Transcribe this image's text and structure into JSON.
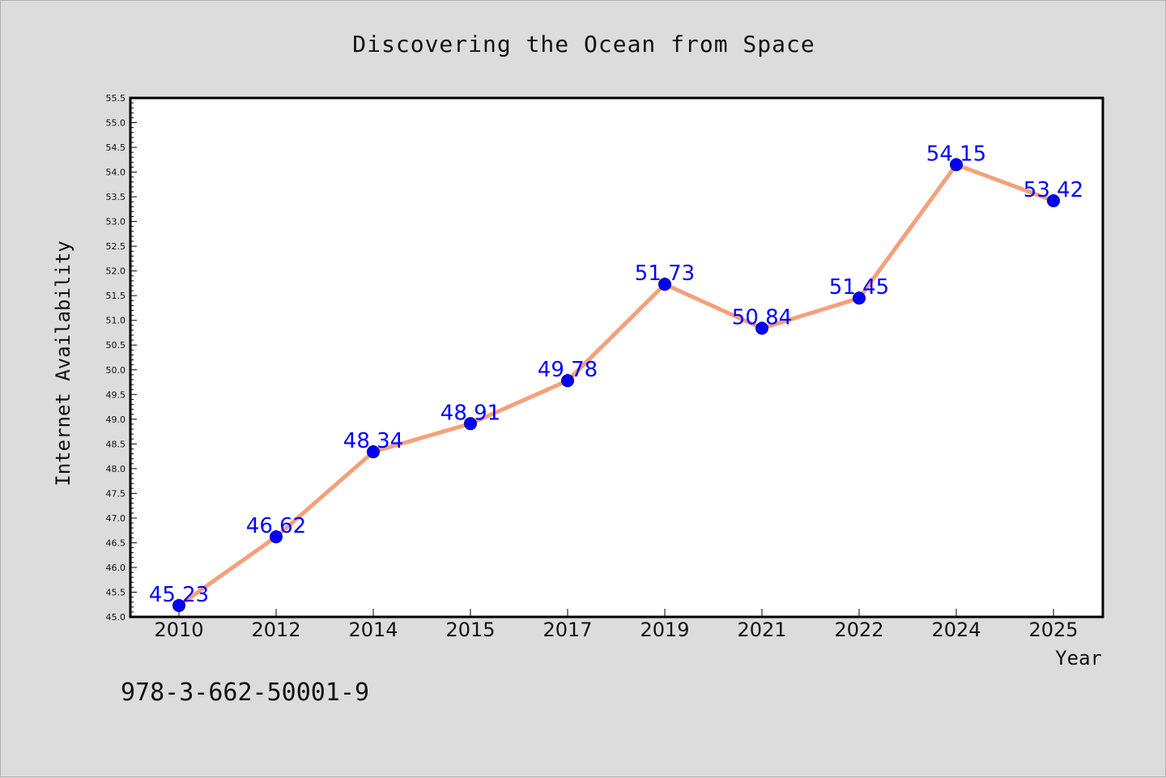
{
  "chart_data": {
    "type": "line",
    "title": "Discovering the Ocean from Space",
    "xlabel": "Year",
    "ylabel": "Internet Availability",
    "categories": [
      "2010",
      "2012",
      "2014",
      "2015",
      "2017",
      "2019",
      "2021",
      "2022",
      "2024",
      "2025"
    ],
    "series": [
      {
        "values": [
          45.23,
          46.62,
          48.34,
          48.91,
          49.78,
          51.73,
          50.84,
          51.45,
          54.15,
          53.42
        ],
        "line_color": "#f4a07a",
        "marker_color": "#0000ff"
      }
    ],
    "data_labels": [
      "45.23",
      "46.62",
      "48.34",
      "48.91",
      "49.78",
      "51.73",
      "50.84",
      "51.45",
      "54.15",
      "53.42"
    ],
    "ylim": [
      45.0,
      55.5
    ],
    "yticks": [
      "45.0",
      "45.5",
      "46.0",
      "46.5",
      "47.0",
      "47.5",
      "48.0",
      "48.5",
      "49.0",
      "49.5",
      "50.0",
      "50.5",
      "51.0",
      "51.5",
      "52.0",
      "52.5",
      "53.0",
      "53.5",
      "54.0",
      "54.5",
      "55.0",
      "55.5"
    ],
    "grid": false,
    "legend": "none"
  },
  "footnote": "978-3-662-50001-9"
}
